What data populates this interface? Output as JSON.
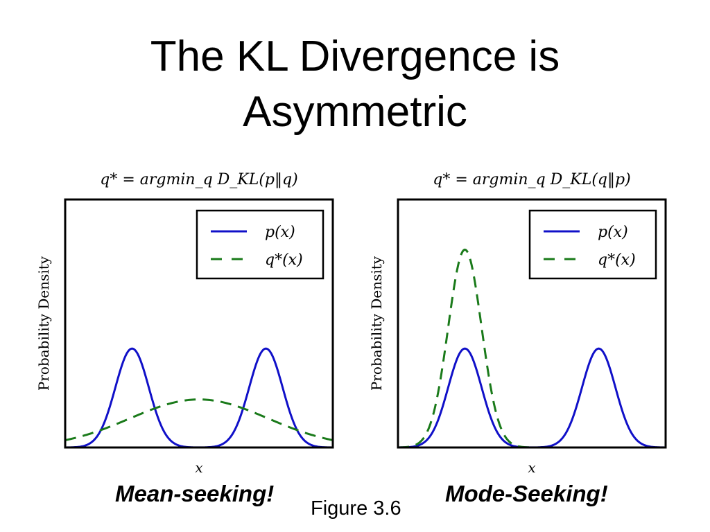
{
  "slide": {
    "title_line1": "The KL Divergence is",
    "title_line2": "Asymmetric",
    "caption_left": "Mean-seeking!",
    "caption_right": "Mode-Seeking!",
    "figure_label": "Figure 3.6"
  },
  "colors": {
    "p": "#1010c8",
    "q": "#1a7a1a"
  },
  "chart_data": [
    {
      "type": "line",
      "title": "q* = argmin_q D_KL(p‖q)",
      "xlabel": "x",
      "ylabel": "Probability Density",
      "xlim": [
        -4,
        4
      ],
      "ylim": [
        0,
        1.0
      ],
      "grid": false,
      "legend_position": "top-right",
      "series": [
        {
          "name": "p(x)",
          "style": "solid",
          "components": [
            {
              "mean": -2,
              "std": 0.5,
              "weight": 0.5
            },
            {
              "mean": 2,
              "std": 0.5,
              "weight": 0.5
            }
          ]
        },
        {
          "name": "q*(x)",
          "style": "dashed",
          "components": [
            {
              "mean": 0,
              "std": 2.06,
              "weight": 1
            }
          ]
        }
      ]
    },
    {
      "type": "line",
      "title": "q* = argmin_q D_KL(q‖p)",
      "xlabel": "x",
      "ylabel": "Probability Density",
      "xlim": [
        -4,
        4
      ],
      "ylim": [
        0,
        1.0
      ],
      "grid": false,
      "legend_position": "top-right",
      "series": [
        {
          "name": "p(x)",
          "style": "solid",
          "components": [
            {
              "mean": -2,
              "std": 0.5,
              "weight": 0.5
            },
            {
              "mean": 2,
              "std": 0.5,
              "weight": 0.5
            }
          ]
        },
        {
          "name": "q*(x)",
          "style": "dashed",
          "components": [
            {
              "mean": -2,
              "std": 0.5,
              "weight": 1
            }
          ]
        }
      ]
    }
  ]
}
